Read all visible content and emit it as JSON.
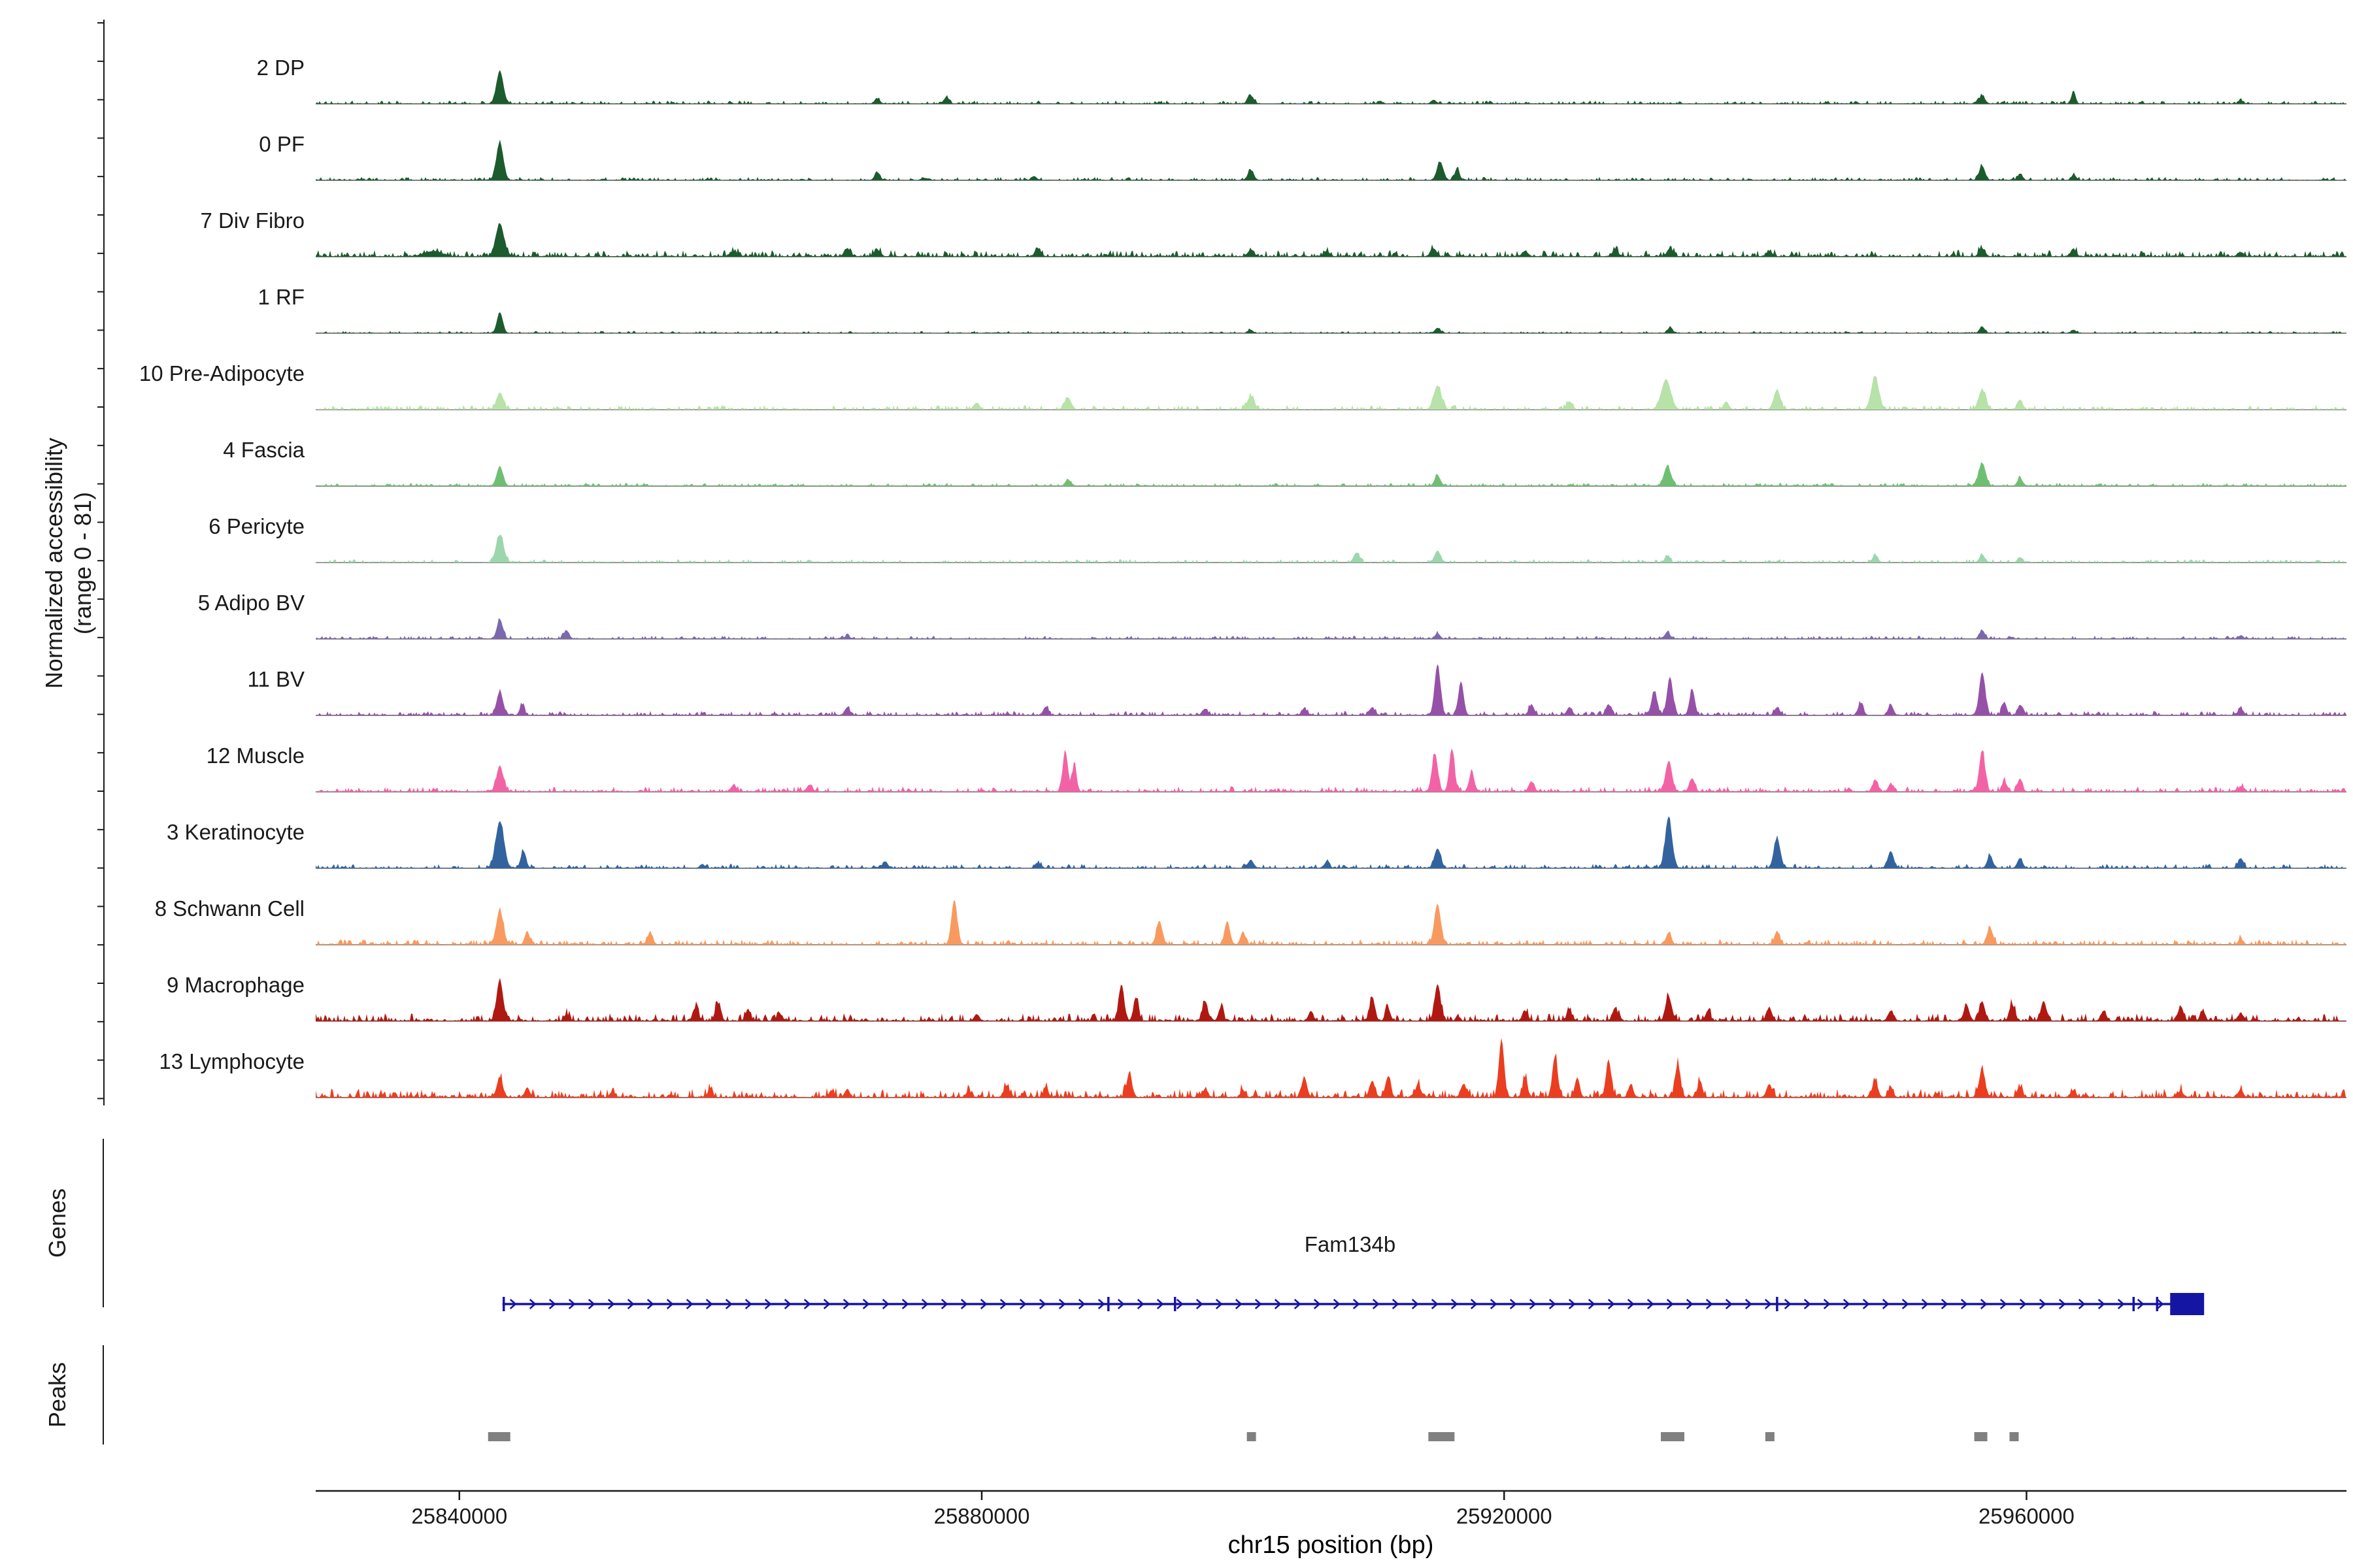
{
  "ui": {
    "y_axis_label_line1": "Normalized accessibility",
    "y_axis_label_line2": "(range 0 - 81)",
    "genes_section_label": "Genes",
    "peaks_section_label": "Peaks",
    "x_axis_label": "chr15 position (bp)"
  },
  "chart_data": {
    "type": "area",
    "title": "",
    "description": "Multi-track normalized chromatin accessibility coverage plot over chr15 with gene model and peak regions",
    "x_domain": [
      25829000,
      25984500
    ],
    "x_ticks": [
      25840000,
      25880000,
      25920000,
      25960000
    ],
    "x_tick_labels": [
      "25840000",
      "25880000",
      "25920000",
      "25960000"
    ],
    "y_range": [
      0,
      81
    ],
    "colors": {
      "baseline": "#8c8c8c",
      "axis": "#1a1a1a",
      "peak_region": "#808080",
      "text": "#1a1a1a"
    },
    "tracks": [
      {
        "label": "2 DP",
        "color": "#1c5b2d",
        "noise": 0.03,
        "peaks": [
          [
            25843100,
            0.5,
            1200
          ],
          [
            25872000,
            0.08,
            900
          ],
          [
            25877300,
            0.1,
            900
          ],
          [
            25900600,
            0.12,
            1000
          ],
          [
            25914600,
            0.06,
            900
          ],
          [
            25956600,
            0.12,
            1000
          ],
          [
            25963600,
            0.2,
            700
          ],
          [
            25976400,
            0.05,
            800
          ]
        ]
      },
      {
        "label": "0 PF",
        "color": "#1c5b2d",
        "noise": 0.03,
        "peaks": [
          [
            25843100,
            0.58,
            1200
          ],
          [
            25872000,
            0.12,
            900
          ],
          [
            25884000,
            0.06,
            900
          ],
          [
            25900600,
            0.15,
            1000
          ],
          [
            25915100,
            0.28,
            1100
          ],
          [
            25916400,
            0.18,
            800
          ],
          [
            25956600,
            0.22,
            1000
          ],
          [
            25959500,
            0.1,
            800
          ],
          [
            25963600,
            0.08,
            800
          ]
        ]
      },
      {
        "label": "7 Div Fibro",
        "color": "#1c5b2d",
        "noise": 0.06,
        "peaks": [
          [
            25838000,
            0.08,
            3000
          ],
          [
            25843100,
            0.5,
            1400
          ],
          [
            25861000,
            0.08,
            1200
          ],
          [
            25869700,
            0.12,
            1000
          ],
          [
            25872000,
            0.1,
            1000
          ],
          [
            25884300,
            0.12,
            1000
          ],
          [
            25900600,
            0.1,
            1000
          ],
          [
            25906400,
            0.08,
            1000
          ],
          [
            25914600,
            0.12,
            1000
          ],
          [
            25921600,
            0.08,
            1000
          ],
          [
            25928500,
            0.1,
            1000
          ],
          [
            25932700,
            0.12,
            1000
          ],
          [
            25940300,
            0.08,
            1000
          ],
          [
            25956600,
            0.12,
            1000
          ],
          [
            25963600,
            0.1,
            900
          ],
          [
            25976400,
            0.06,
            900
          ]
        ]
      },
      {
        "label": "1 RF",
        "color": "#1c5b2d",
        "noise": 0.02,
        "peaks": [
          [
            25843100,
            0.32,
            1000
          ],
          [
            25900600,
            0.05,
            800
          ],
          [
            25914900,
            0.08,
            900
          ],
          [
            25932700,
            0.08,
            900
          ],
          [
            25956600,
            0.1,
            900
          ],
          [
            25963600,
            0.05,
            800
          ]
        ]
      },
      {
        "label": "10 Pre-Adipocyte",
        "color": "#b7e2a8",
        "noise": 0.04,
        "peaks": [
          [
            25843100,
            0.26,
            1100
          ],
          [
            25879600,
            0.1,
            1000
          ],
          [
            25886600,
            0.18,
            1100
          ],
          [
            25900600,
            0.2,
            1200
          ],
          [
            25914900,
            0.36,
            1300
          ],
          [
            25925000,
            0.12,
            1000
          ],
          [
            25932400,
            0.46,
            1600
          ],
          [
            25937000,
            0.12,
            900
          ],
          [
            25940900,
            0.3,
            1100
          ],
          [
            25948400,
            0.5,
            1300
          ],
          [
            25956600,
            0.3,
            1200
          ],
          [
            25959500,
            0.15,
            900
          ]
        ]
      },
      {
        "label": "4 Fascia",
        "color": "#6fbf73",
        "noise": 0.03,
        "peaks": [
          [
            25843100,
            0.3,
            1100
          ],
          [
            25886600,
            0.1,
            900
          ],
          [
            25914900,
            0.16,
            1000
          ],
          [
            25932500,
            0.3,
            1200
          ],
          [
            25956600,
            0.35,
            1200
          ],
          [
            25959500,
            0.12,
            900
          ]
        ]
      },
      {
        "label": "6 Pericyte",
        "color": "#9cd6ad",
        "noise": 0.03,
        "peaks": [
          [
            25843100,
            0.42,
            1300
          ],
          [
            25908700,
            0.15,
            1000
          ],
          [
            25914900,
            0.18,
            1000
          ],
          [
            25932500,
            0.08,
            900
          ],
          [
            25948400,
            0.1,
            900
          ],
          [
            25956600,
            0.12,
            900
          ],
          [
            25959500,
            0.08,
            800
          ]
        ]
      },
      {
        "label": "5 Adipo BV",
        "color": "#7b68ae",
        "noise": 0.03,
        "peaks": [
          [
            25843100,
            0.3,
            1000
          ],
          [
            25848200,
            0.13,
            900
          ],
          [
            25869700,
            0.05,
            800
          ],
          [
            25914900,
            0.08,
            900
          ],
          [
            25932500,
            0.1,
            900
          ],
          [
            25956600,
            0.13,
            900
          ],
          [
            25976400,
            0.05,
            800
          ]
        ]
      },
      {
        "label": "11 BV",
        "color": "#9551a8",
        "noise": 0.04,
        "peaks": [
          [
            25843100,
            0.36,
            1100
          ],
          [
            25844800,
            0.16,
            800
          ],
          [
            25869700,
            0.1,
            900
          ],
          [
            25884900,
            0.12,
            900
          ],
          [
            25897100,
            0.1,
            900
          ],
          [
            25904700,
            0.1,
            900
          ],
          [
            25909900,
            0.12,
            900
          ],
          [
            25914900,
            0.78,
            1000
          ],
          [
            25916700,
            0.52,
            900
          ],
          [
            25922100,
            0.16,
            900
          ],
          [
            25925000,
            0.12,
            900
          ],
          [
            25928000,
            0.16,
            900
          ],
          [
            25931500,
            0.36,
            1000
          ],
          [
            25932700,
            0.58,
            1000
          ],
          [
            25934400,
            0.4,
            900
          ],
          [
            25940900,
            0.12,
            900
          ],
          [
            25947300,
            0.18,
            900
          ],
          [
            25949600,
            0.15,
            900
          ],
          [
            25956600,
            0.66,
            1000
          ],
          [
            25958300,
            0.2,
            800
          ],
          [
            25959500,
            0.16,
            800
          ],
          [
            25976400,
            0.1,
            900
          ]
        ]
      },
      {
        "label": "12 Muscle",
        "color": "#f263a5",
        "noise": 0.05,
        "peaks": [
          [
            25843100,
            0.4,
            1100
          ],
          [
            25861000,
            0.1,
            900
          ],
          [
            25866800,
            0.1,
            900
          ],
          [
            25886400,
            0.62,
            900
          ],
          [
            25887100,
            0.45,
            700
          ],
          [
            25914700,
            0.58,
            1000
          ],
          [
            25916000,
            0.66,
            900
          ],
          [
            25917500,
            0.3,
            800
          ],
          [
            25922100,
            0.15,
            900
          ],
          [
            25932600,
            0.46,
            1100
          ],
          [
            25934400,
            0.2,
            900
          ],
          [
            25948400,
            0.16,
            900
          ],
          [
            25949600,
            0.12,
            800
          ],
          [
            25956600,
            0.62,
            1000
          ],
          [
            25958300,
            0.16,
            800
          ],
          [
            25959500,
            0.2,
            800
          ],
          [
            25976400,
            0.08,
            800
          ]
        ]
      },
      {
        "label": "3 Keratinocyte",
        "color": "#33639e",
        "noise": 0.04,
        "peaks": [
          [
            25843100,
            0.72,
            1400
          ],
          [
            25844900,
            0.26,
            900
          ],
          [
            25858600,
            0.06,
            800
          ],
          [
            25872600,
            0.1,
            900
          ],
          [
            25884300,
            0.08,
            900
          ],
          [
            25900600,
            0.12,
            1000
          ],
          [
            25906400,
            0.08,
            900
          ],
          [
            25914900,
            0.3,
            1100
          ],
          [
            25932600,
            0.76,
            1200
          ],
          [
            25940900,
            0.46,
            1100
          ],
          [
            25949600,
            0.26,
            1000
          ],
          [
            25957200,
            0.2,
            900
          ],
          [
            25959500,
            0.15,
            900
          ],
          [
            25976400,
            0.15,
            900
          ]
        ]
      },
      {
        "label": "8 Schwann Cell",
        "color": "#f89a5f",
        "noise": 0.05,
        "peaks": [
          [
            25843100,
            0.52,
            1200
          ],
          [
            25845200,
            0.2,
            800
          ],
          [
            25854600,
            0.18,
            900
          ],
          [
            25877900,
            0.68,
            1000
          ],
          [
            25893600,
            0.36,
            1000
          ],
          [
            25898800,
            0.36,
            900
          ],
          [
            25900000,
            0.2,
            800
          ],
          [
            25914900,
            0.62,
            1100
          ],
          [
            25932600,
            0.18,
            900
          ],
          [
            25940900,
            0.2,
            900
          ],
          [
            25957200,
            0.25,
            1000
          ],
          [
            25976400,
            0.08,
            800
          ]
        ]
      },
      {
        "label": "9 Macrophage",
        "color": "#b01912",
        "noise": 0.07,
        "peaks": [
          [
            25843100,
            0.62,
            1100
          ],
          [
            25848200,
            0.1,
            800
          ],
          [
            25858100,
            0.2,
            900
          ],
          [
            25859800,
            0.26,
            900
          ],
          [
            25862100,
            0.18,
            800
          ],
          [
            25864500,
            0.12,
            800
          ],
          [
            25879600,
            0.1,
            800
          ],
          [
            25890700,
            0.56,
            900
          ],
          [
            25891800,
            0.36,
            800
          ],
          [
            25897100,
            0.3,
            900
          ],
          [
            25898300,
            0.2,
            800
          ],
          [
            25905200,
            0.15,
            800
          ],
          [
            25909900,
            0.36,
            900
          ],
          [
            25911100,
            0.2,
            800
          ],
          [
            25914900,
            0.56,
            1000
          ],
          [
            25921600,
            0.15,
            900
          ],
          [
            25925000,
            0.15,
            900
          ],
          [
            25928500,
            0.2,
            900
          ],
          [
            25932600,
            0.36,
            1000
          ],
          [
            25935600,
            0.15,
            800
          ],
          [
            25940300,
            0.2,
            900
          ],
          [
            25949600,
            0.15,
            900
          ],
          [
            25955400,
            0.25,
            900
          ],
          [
            25956600,
            0.3,
            900
          ],
          [
            25958900,
            0.25,
            900
          ],
          [
            25961300,
            0.3,
            900
          ],
          [
            25965900,
            0.15,
            900
          ],
          [
            25971800,
            0.2,
            900
          ],
          [
            25973500,
            0.15,
            800
          ],
          [
            25976400,
            0.12,
            800
          ]
        ]
      },
      {
        "label": "13 Lymphocyte",
        "color": "#eb3d20",
        "noise": 0.08,
        "peaks": [
          [
            25843100,
            0.3,
            1000
          ],
          [
            25845200,
            0.15,
            800
          ],
          [
            25851700,
            0.08,
            800
          ],
          [
            25859200,
            0.12,
            800
          ],
          [
            25868500,
            0.1,
            800
          ],
          [
            25869700,
            0.12,
            800
          ],
          [
            25879000,
            0.1,
            800
          ],
          [
            25881900,
            0.18,
            900
          ],
          [
            25884900,
            0.15,
            800
          ],
          [
            25891300,
            0.36,
            900
          ],
          [
            25897100,
            0.12,
            800
          ],
          [
            25900000,
            0.1,
            800
          ],
          [
            25904700,
            0.3,
            900
          ],
          [
            25909900,
            0.25,
            900
          ],
          [
            25911100,
            0.3,
            900
          ],
          [
            25913400,
            0.2,
            800
          ],
          [
            25916900,
            0.2,
            900
          ],
          [
            25919800,
            0.88,
            900
          ],
          [
            25921600,
            0.3,
            800
          ],
          [
            25923900,
            0.62,
            900
          ],
          [
            25925600,
            0.3,
            800
          ],
          [
            25928000,
            0.56,
            900
          ],
          [
            25929700,
            0.2,
            800
          ],
          [
            25933300,
            0.5,
            900
          ],
          [
            25935000,
            0.25,
            800
          ],
          [
            25940300,
            0.2,
            900
          ],
          [
            25948400,
            0.26,
            900
          ],
          [
            25949600,
            0.15,
            800
          ],
          [
            25956600,
            0.42,
            1000
          ],
          [
            25959500,
            0.15,
            800
          ],
          [
            25963600,
            0.1,
            800
          ],
          [
            25971800,
            0.1,
            800
          ],
          [
            25976400,
            0.12,
            800
          ]
        ]
      }
    ],
    "gene": {
      "name": "Fam134b",
      "start": 25843300,
      "end": 25971600,
      "strand": "+",
      "color": "#1515a3",
      "label_bp": 25908200,
      "exon_ticks": [
        25843400,
        25889700,
        25894800,
        25940900,
        25968200,
        25970000
      ],
      "terminal_exon": [
        25971000,
        25973600
      ]
    },
    "peak_regions": [
      [
        25842200,
        25843900
      ],
      [
        25900300,
        25901000
      ],
      [
        25914200,
        25916200
      ],
      [
        25932000,
        25933800
      ],
      [
        25940000,
        25940700
      ],
      [
        25956000,
        25957000
      ],
      [
        25958700,
        25959400
      ]
    ]
  }
}
